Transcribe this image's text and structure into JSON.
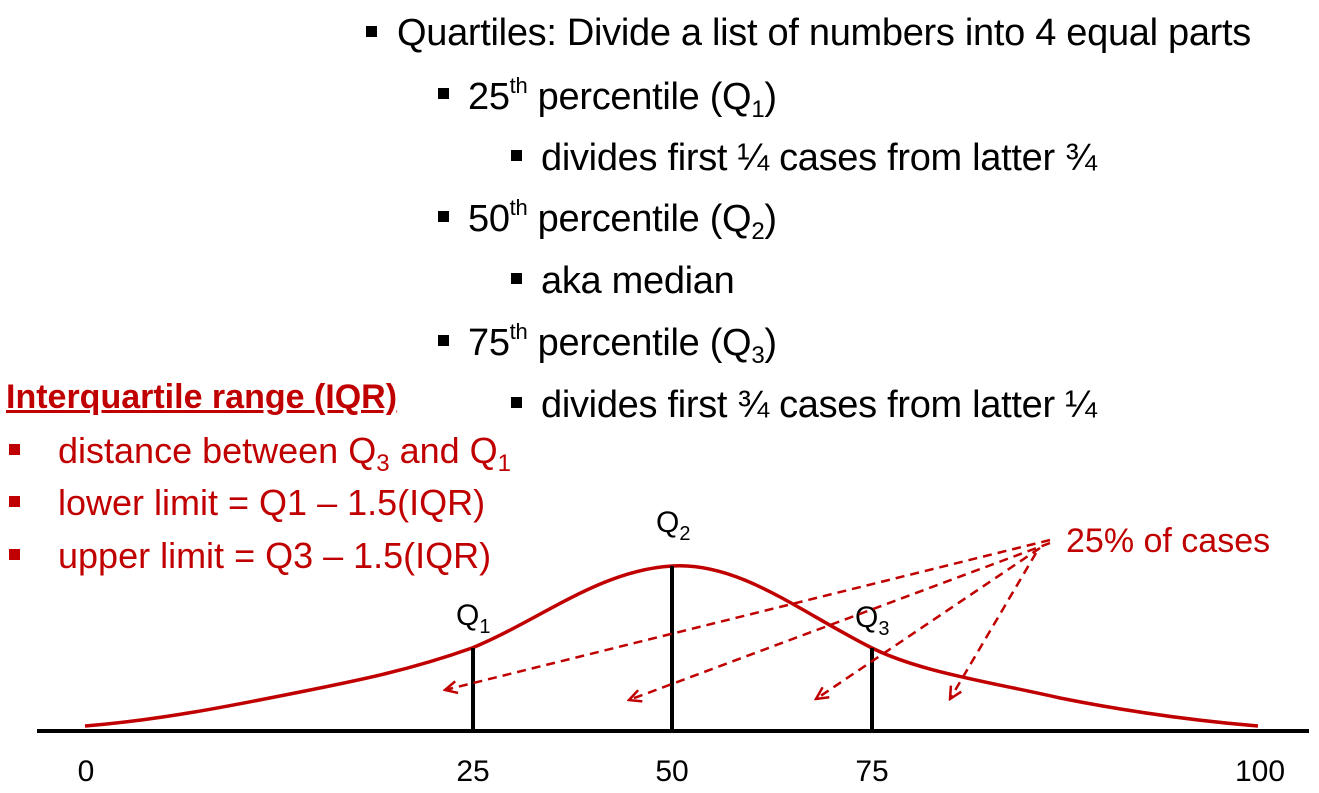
{
  "main_bullets": {
    "quartiles": "Quartiles: Divide a list of numbers into 4 equal parts",
    "p25": {
      "num": "25",
      "sup": "th",
      "text": " percentile (Q",
      "sub": "1",
      "close": ")"
    },
    "p25_desc": "divides first ¼ cases from latter ¾",
    "p50": {
      "num": "50",
      "sup": "th",
      "text": " percentile (Q",
      "sub": "2",
      "close": ")"
    },
    "p50_desc": "aka median",
    "p75": {
      "num": "75",
      "sup": "th",
      "text": " percentile (Q",
      "sub": "3",
      "close": ")"
    },
    "p75_desc": "divides first ¾ cases from latter ¼"
  },
  "iqr": {
    "title": "Interquartile range (IQR)",
    "item1": {
      "pre": "distance between Q",
      "sub1": "3",
      "mid": " and Q",
      "sub2": "1"
    },
    "item2": "lower limit = Q1 – 1.5(IQR)",
    "item3": "upper limit = Q3 – 1.5(IQR)"
  },
  "diagram": {
    "q1": {
      "letter": "Q",
      "sub": "1"
    },
    "q2": {
      "letter": "Q",
      "sub": "2"
    },
    "q3": {
      "letter": "Q",
      "sub": "3"
    },
    "cases_label": "25% of cases",
    "axis_ticks": [
      "0",
      "25",
      "50",
      "75",
      "100"
    ],
    "curve_color": "#c00000",
    "axis_color": "#000000"
  }
}
